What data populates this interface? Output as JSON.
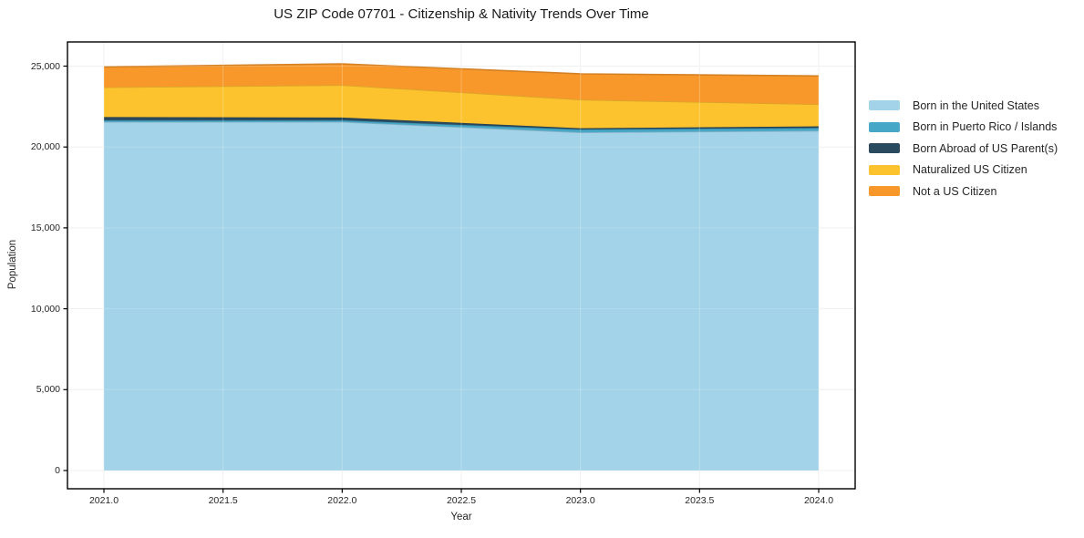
{
  "chart_data": {
    "type": "area",
    "stacked": true,
    "title": "US ZIP Code 07701 - Citizenship & Nativity Trends Over Time",
    "xlabel": "Year",
    "ylabel": "Population",
    "x": [
      2021,
      2022,
      2023,
      2024
    ],
    "series": [
      {
        "name": "Born in the United States",
        "color": "#a3d3e8",
        "values": [
          21550,
          21550,
          20900,
          21000
        ]
      },
      {
        "name": "Born in Puerto Rico / Islands",
        "color": "#47a7c7",
        "values": [
          100,
          100,
          180,
          180
        ]
      },
      {
        "name": "Born Abroad of US Parent(s)",
        "color": "#2a4a5f",
        "values": [
          200,
          170,
          80,
          100
        ]
      },
      {
        "name": "Naturalized US Citizen",
        "color": "#fdc32f",
        "values": [
          1840,
          2010,
          1765,
          1360
        ]
      },
      {
        "name": "Not a US Citizen",
        "color": "#f8982b",
        "values": [
          1260,
          1310,
          1595,
          1750
        ]
      }
    ],
    "totals": [
      24950,
      25140,
      24520,
      24390
    ],
    "xticks": [
      {
        "v": 2021.0,
        "label": "2021.0"
      },
      {
        "v": 2021.5,
        "label": "2021.5"
      },
      {
        "v": 2022.0,
        "label": "2022.0"
      },
      {
        "v": 2022.5,
        "label": "2022.5"
      },
      {
        "v": 2023.0,
        "label": "2023.0"
      },
      {
        "v": 2023.5,
        "label": "2023.5"
      },
      {
        "v": 2024.0,
        "label": "2024.0"
      }
    ],
    "yticks": [
      {
        "v": 0,
        "label": "0"
      },
      {
        "v": 5000,
        "label": "5,000"
      },
      {
        "v": 10000,
        "label": "10,000"
      },
      {
        "v": 15000,
        "label": "15,000"
      },
      {
        "v": 20000,
        "label": "20,000"
      },
      {
        "v": 25000,
        "label": "25,000"
      }
    ],
    "xlim": [
      2020.85,
      2024.16
    ],
    "ylim": [
      -1130,
      26490
    ],
    "grid": true,
    "legend_position": "right-outside",
    "colors": {
      "grid": "#ededed",
      "spine": "#000000",
      "text": "#262626",
      "title_text": "#1a1a1a",
      "background": "#ffffff"
    }
  }
}
